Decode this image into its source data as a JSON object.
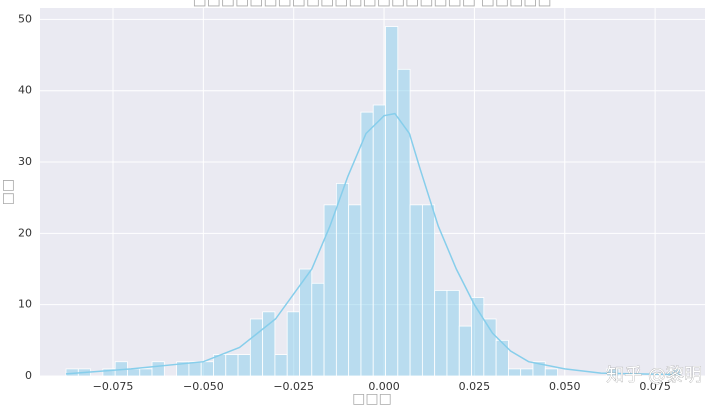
{
  "chart_data": {
    "type": "histogram",
    "title": "□□□□□□□□□□□□□□□□□□□□ □□□□□",
    "x_label": "□□□",
    "y_label": "□□",
    "watermark": "知乎 @黎明",
    "color": "#87ceeb",
    "bins": [
      -0.088,
      -0.0846,
      -0.0812,
      -0.0778,
      -0.0744,
      -0.071,
      -0.0676,
      -0.0642,
      -0.0608,
      -0.0574,
      -0.054,
      -0.0506,
      -0.0472,
      -0.0438,
      -0.0404,
      -0.037,
      -0.0336,
      -0.0302,
      -0.0268,
      -0.0234,
      -0.02,
      -0.0166,
      -0.0132,
      -0.0098,
      -0.0064,
      -0.003,
      0.0004,
      0.0038,
      0.0072,
      0.0106,
      0.014,
      0.0174,
      0.0208,
      0.0242,
      0.0276,
      0.031,
      0.0344,
      0.0378,
      0.0412,
      0.0446,
      0.048,
      0.0514,
      0.0548,
      0.0582,
      0.0616,
      0.065,
      0.0684,
      0.0718,
      0.0752,
      0.0786,
      0.082
    ],
    "values": [
      1,
      1,
      0,
      1,
      2,
      1,
      1,
      2,
      0,
      2,
      2,
      2,
      3,
      3,
      3,
      8,
      9,
      3,
      9,
      15,
      13,
      24,
      27,
      24,
      37,
      38,
      49,
      43,
      24,
      24,
      12,
      12,
      7,
      11,
      8,
      5,
      1,
      1,
      2,
      1,
      0,
      0,
      0,
      0,
      1,
      0,
      0,
      0,
      0,
      1
    ],
    "kde": {
      "x": [
        -0.088,
        -0.07,
        -0.05,
        -0.04,
        -0.03,
        -0.02,
        -0.015,
        -0.01,
        -0.005,
        0,
        0.003,
        0.007,
        0.01,
        0.015,
        0.02,
        0.025,
        0.03,
        0.035,
        0.04,
        0.05,
        0.06,
        0.07,
        0.082
      ],
      "y": [
        0.3,
        1,
        2,
        4,
        8,
        15,
        21,
        28,
        34,
        36.5,
        36.8,
        34,
        29,
        21,
        15,
        10,
        6,
        3.5,
        2,
        1,
        0.4,
        0.3,
        0.2
      ]
    },
    "xlim": [
      -0.0952,
      0.0888
    ],
    "ylim": [
      0,
      51.6
    ],
    "xticks": [
      {
        "value": -0.075,
        "label": "−0.075"
      },
      {
        "value": -0.05,
        "label": "−0.050"
      },
      {
        "value": -0.025,
        "label": "−0.025"
      },
      {
        "value": 0,
        "label": "0.000"
      },
      0.025,
      {
        "value": 0.05,
        "label": "0.050"
      },
      0.075
    ],
    "yticks": [
      0,
      10,
      20,
      30,
      40,
      50
    ],
    "grid": true
  }
}
